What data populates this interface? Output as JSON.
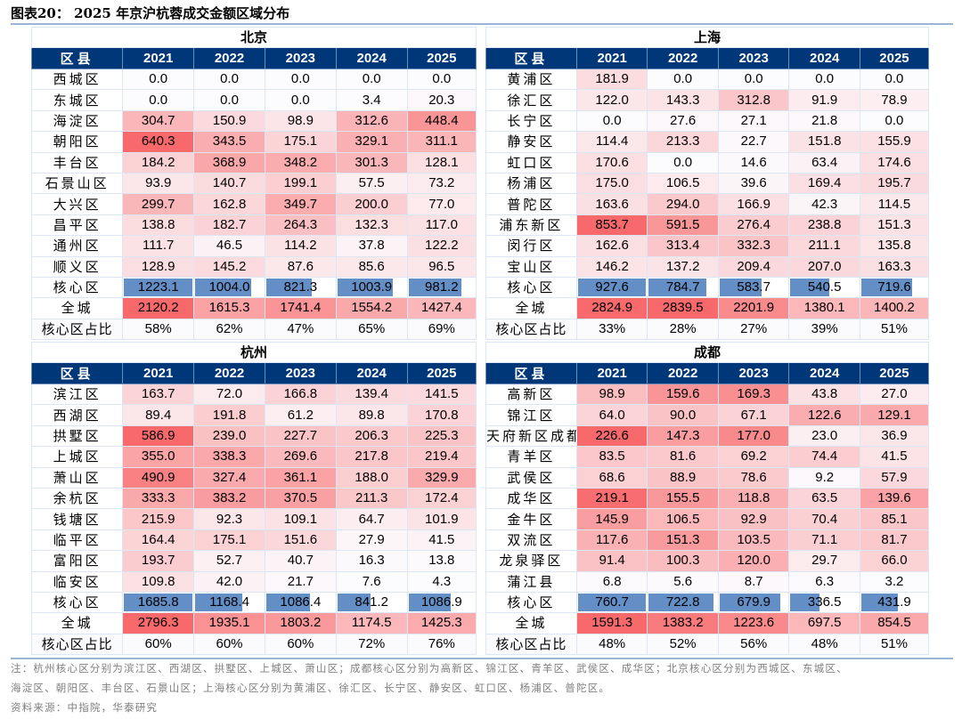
{
  "figure": {
    "title": "图表20：  2025 年京沪杭蓉成交金额区域分布",
    "note_line1": "注：杭州核心区分别为滨江区、西湖区、拱墅区、上城区、萧山区；成都核心区分别为高新区、锦江区、青羊区、武侯区、成华区；北京核心区分别为西城区、东城区、",
    "note_line2": "海淀区、朝阳区、丰台区、石景山区；上海核心区分别为黄浦区、徐汇区、长宁区、静安区、虹口区、杨浦区、普陀区。",
    "source": "资料来源：中指院，华泰研究"
  },
  "colors": {
    "header_bg": "#003778",
    "heat_low": "#FCFCFF",
    "heat_high": "#F8696B",
    "databar": "#638EC6"
  },
  "chart_data": [
    {
      "type": "table",
      "title": "北京",
      "header": [
        "区县",
        "2021",
        "2022",
        "2023",
        "2024",
        "2025"
      ],
      "rows": [
        {
          "name": "西城区",
          "values": [
            "0.0",
            "0.0",
            "0.0",
            "0.0",
            "0.0"
          ]
        },
        {
          "name": "东城区",
          "values": [
            "0.0",
            "0.0",
            "0.0",
            "3.4",
            "20.3"
          ]
        },
        {
          "name": "海淀区",
          "values": [
            "304.7",
            "150.9",
            "98.9",
            "312.6",
            "448.4"
          ]
        },
        {
          "name": "朝阳区",
          "values": [
            "640.3",
            "343.5",
            "175.1",
            "329.1",
            "311.1"
          ]
        },
        {
          "name": "丰台区",
          "values": [
            "184.2",
            "368.9",
            "348.2",
            "301.3",
            "128.1"
          ]
        },
        {
          "name": "石景山区",
          "values": [
            "93.9",
            "140.7",
            "199.1",
            "57.5",
            "73.2"
          ]
        },
        {
          "name": "大兴区",
          "values": [
            "299.7",
            "162.8",
            "349.7",
            "200.0",
            "77.0"
          ]
        },
        {
          "name": "昌平区",
          "values": [
            "138.8",
            "182.7",
            "264.3",
            "132.3",
            "117.0"
          ]
        },
        {
          "name": "通州区",
          "values": [
            "111.7",
            "46.5",
            "114.2",
            "37.8",
            "122.2"
          ]
        },
        {
          "name": "顺义区",
          "values": [
            "128.9",
            "145.2",
            "87.6",
            "85.6",
            "96.5"
          ]
        }
      ],
      "core": {
        "name": "核心区",
        "values": [
          "1223.1",
          "1004.0",
          "821.3",
          "1003.9",
          "981.2"
        ]
      },
      "total": {
        "name": "全城",
        "values": [
          "2120.2",
          "1615.3",
          "1741.4",
          "1554.2",
          "1427.4"
        ]
      },
      "share": {
        "name": "核心区占比",
        "values": [
          "58%",
          "62%",
          "47%",
          "65%",
          "69%"
        ]
      }
    },
    {
      "type": "table",
      "title": "上海",
      "header": [
        "区县",
        "2021",
        "2022",
        "2023",
        "2024",
        "2025"
      ],
      "rows": [
        {
          "name": "黄浦区",
          "values": [
            "181.9",
            "0.0",
            "0.0",
            "0.0",
            "0.0"
          ]
        },
        {
          "name": "徐汇区",
          "values": [
            "122.0",
            "143.3",
            "312.8",
            "91.9",
            "78.9"
          ]
        },
        {
          "name": "长宁区",
          "values": [
            "0.0",
            "27.6",
            "27.1",
            "21.8",
            "0.0"
          ]
        },
        {
          "name": "静安区",
          "values": [
            "114.4",
            "213.3",
            "22.7",
            "151.8",
            "155.9"
          ]
        },
        {
          "name": "虹口区",
          "values": [
            "170.6",
            "0.0",
            "14.6",
            "63.4",
            "174.6"
          ]
        },
        {
          "name": "杨浦区",
          "values": [
            "175.0",
            "106.5",
            "39.6",
            "169.4",
            "195.7"
          ]
        },
        {
          "name": "普陀区",
          "values": [
            "163.6",
            "294.0",
            "166.9",
            "42.3",
            "114.5"
          ]
        },
        {
          "name": "浦东新区",
          "values": [
            "853.7",
            "591.5",
            "276.4",
            "238.8",
            "151.3"
          ]
        },
        {
          "name": "闵行区",
          "values": [
            "162.6",
            "313.4",
            "332.3",
            "211.1",
            "135.8"
          ]
        },
        {
          "name": "宝山区",
          "values": [
            "146.2",
            "137.2",
            "209.4",
            "207.0",
            "163.3"
          ]
        }
      ],
      "core": {
        "name": "核心区",
        "values": [
          "927.6",
          "784.7",
          "583.7",
          "540.5",
          "719.6"
        ]
      },
      "total": {
        "name": "全城",
        "values": [
          "2824.9",
          "2839.5",
          "2201.9",
          "1380.1",
          "1400.2"
        ]
      },
      "share": {
        "name": "核心区占比",
        "values": [
          "33%",
          "28%",
          "27%",
          "39%",
          "51%"
        ]
      }
    },
    {
      "type": "table",
      "title": "杭州",
      "header": [
        "区县",
        "2021",
        "2022",
        "2023",
        "2024",
        "2025"
      ],
      "rows": [
        {
          "name": "滨江区",
          "values": [
            "163.7",
            "72.0",
            "166.8",
            "139.4",
            "141.5"
          ]
        },
        {
          "name": "西湖区",
          "values": [
            "89.4",
            "191.8",
            "61.2",
            "89.8",
            "170.8"
          ]
        },
        {
          "name": "拱墅区",
          "values": [
            "586.9",
            "239.0",
            "227.7",
            "206.3",
            "225.3"
          ]
        },
        {
          "name": "上城区",
          "values": [
            "355.0",
            "338.3",
            "269.6",
            "217.8",
            "219.4"
          ]
        },
        {
          "name": "萧山区",
          "values": [
            "490.9",
            "327.4",
            "361.1",
            "188.0",
            "329.9"
          ]
        },
        {
          "name": "余杭区",
          "values": [
            "333.3",
            "383.2",
            "370.5",
            "211.3",
            "172.4"
          ]
        },
        {
          "name": "钱塘区",
          "values": [
            "215.9",
            "92.3",
            "109.1",
            "64.7",
            "101.9"
          ]
        },
        {
          "name": "临平区",
          "values": [
            "164.4",
            "175.1",
            "151.6",
            "27.9",
            "41.5"
          ]
        },
        {
          "name": "富阳区",
          "values": [
            "193.7",
            "52.7",
            "40.7",
            "16.3",
            "13.8"
          ]
        },
        {
          "name": "临安区",
          "values": [
            "109.8",
            "42.0",
            "21.7",
            "7.6",
            "4.3"
          ]
        }
      ],
      "core": {
        "name": "核心区",
        "values": [
          "1685.8",
          "1168.4",
          "1086.4",
          "841.2",
          "1086.9"
        ]
      },
      "total": {
        "name": "全城",
        "values": [
          "2796.3",
          "1935.1",
          "1803.2",
          "1174.5",
          "1425.3"
        ]
      },
      "share": {
        "name": "核心区占比",
        "values": [
          "60%",
          "60%",
          "60%",
          "72%",
          "76%"
        ]
      }
    },
    {
      "type": "table",
      "title": "成都",
      "header": [
        "区县",
        "2021",
        "2022",
        "2023",
        "2024",
        "2025"
      ],
      "rows": [
        {
          "name": "高新区",
          "values": [
            "98.9",
            "159.6",
            "169.3",
            "43.8",
            "27.0"
          ]
        },
        {
          "name": "锦江区",
          "values": [
            "64.0",
            "90.0",
            "67.1",
            "122.6",
            "129.1"
          ]
        },
        {
          "name": "天府新区成都",
          "values": [
            "226.6",
            "147.3",
            "177.0",
            "23.0",
            "36.9"
          ]
        },
        {
          "name": "青羊区",
          "values": [
            "83.5",
            "81.6",
            "69.2",
            "74.4",
            "41.5"
          ]
        },
        {
          "name": "武侯区",
          "values": [
            "68.6",
            "88.9",
            "78.6",
            "9.2",
            "57.9"
          ]
        },
        {
          "name": "成华区",
          "values": [
            "219.1",
            "155.5",
            "118.8",
            "63.5",
            "139.6"
          ]
        },
        {
          "name": "金牛区",
          "values": [
            "145.9",
            "106.5",
            "92.9",
            "70.4",
            "85.1"
          ]
        },
        {
          "name": "双流区",
          "values": [
            "117.6",
            "151.3",
            "103.5",
            "71.1",
            "81.7"
          ]
        },
        {
          "name": "龙泉驿区",
          "values": [
            "91.4",
            "100.3",
            "120.0",
            "29.7",
            "66.0"
          ]
        },
        {
          "name": "蒲江县",
          "values": [
            "6.8",
            "5.6",
            "8.7",
            "6.3",
            "3.2"
          ]
        }
      ],
      "core": {
        "name": "核心区",
        "values": [
          "760.7",
          "722.8",
          "679.9",
          "336.5",
          "431.9"
        ]
      },
      "total": {
        "name": "全城",
        "values": [
          "1591.3",
          "1383.2",
          "1223.6",
          "697.5",
          "854.5"
        ]
      },
      "share": {
        "name": "核心区占比",
        "values": [
          "48%",
          "52%",
          "56%",
          "48%",
          "51%"
        ]
      }
    }
  ]
}
